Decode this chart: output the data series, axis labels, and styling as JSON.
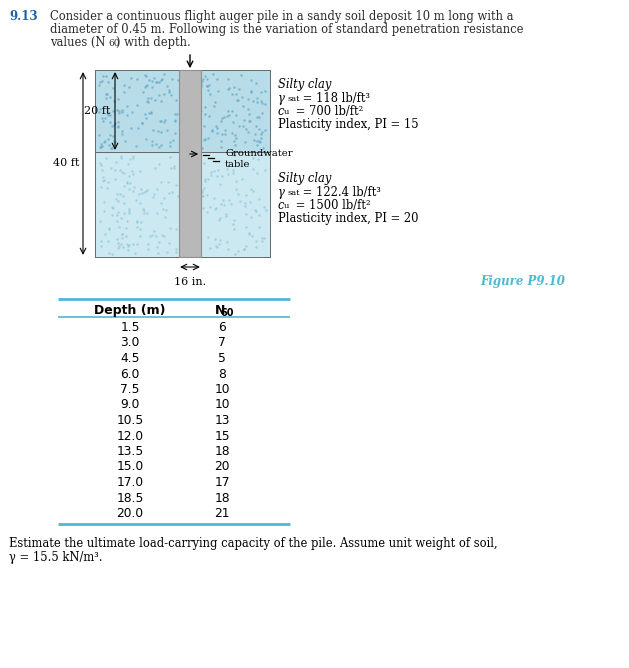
{
  "problem_number": "9.13",
  "problem_text_line1": "Consider a continuous flight auger pile in a sandy soil deposit 10 m long with a",
  "problem_text_line2": "diameter of 0.45 m. Following is the variation of standard penetration resistance",
  "problem_text_line3": "values (N",
  "problem_text_line3b": "60",
  "problem_text_line3c": ") with depth.",
  "figure_label": "Figure P9.10",
  "layer1_label": "Silty clay",
  "layer1_gamma_pre": "γ",
  "layer1_gamma_sub": "sat",
  "layer1_gamma_val": " = 118 lb/ft³",
  "layer1_c_pre": "c",
  "layer1_c_sub": "u",
  "layer1_c_val": " = 700 lb/ft²",
  "layer1_PI": "Plasticity index, PI = 15",
  "layer2_label": "Silty clay",
  "layer2_gamma_pre": "γ",
  "layer2_gamma_sub": "sat",
  "layer2_gamma_val": " = 122.4 lb/ft³",
  "layer2_c_pre": "c",
  "layer2_c_sub": "u",
  "layer2_c_val": " = 1500 lb/ft²",
  "layer2_PI": "Plasticity index, PI = 20",
  "dim_20ft": "20 ft",
  "dim_40ft": "40 ft",
  "dim_16in": "16 in.",
  "gw_label1": "Groundwater",
  "gw_label2": "table",
  "soil_color_upper": "#b8dde8",
  "soil_color_lower": "#cce8f0",
  "pile_color": "#b8b8b8",
  "pile_outline": "#909090",
  "table_depths": [
    1.5,
    3.0,
    4.5,
    6.0,
    7.5,
    9.0,
    10.5,
    12.0,
    13.5,
    15.0,
    17.0,
    18.5,
    20.0
  ],
  "table_N60": [
    6,
    7,
    5,
    8,
    10,
    10,
    13,
    15,
    18,
    20,
    17,
    18,
    21
  ],
  "col1_header": "Depth (m)",
  "col2_header": "N",
  "col2_subscript": "60",
  "footer_line1": "Estimate the ultimate load-carrying capacity of the pile. Assume unit weight of soil,",
  "footer_line2": "γ = 15.5 kN/m³.",
  "accent_color": "#4db8d4",
  "text_color": "#2a2a2a",
  "problem_number_color": "#1a5fa8"
}
